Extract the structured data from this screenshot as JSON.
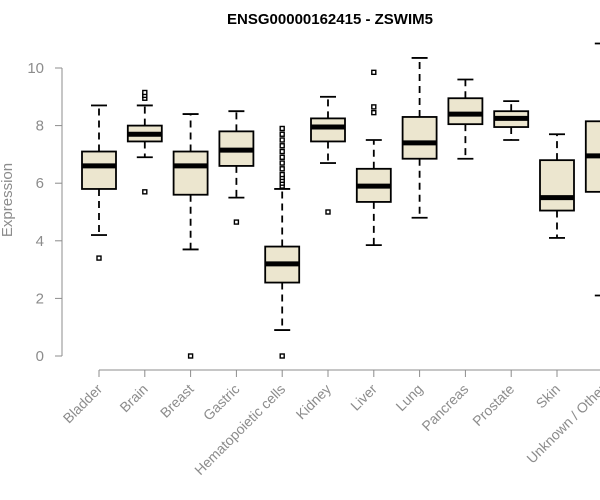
{
  "chart_data": {
    "type": "boxplot",
    "title": "ENSG00000162415 - ZSWIM5",
    "ylabel": "Expression",
    "xlabel": "",
    "ylim": [
      0,
      10
    ],
    "yticks": [
      0,
      2,
      4,
      6,
      8,
      10
    ],
    "grid": false,
    "colors": {
      "box_fill": "#ece6cf",
      "stroke": "#000000",
      "axis": "#8c8c8c"
    },
    "categories": [
      "Bladder",
      "Brain",
      "Breast",
      "Gastric",
      "Hematopoietic cells",
      "Kidney",
      "Liver",
      "Lung",
      "Pancreas",
      "Prostate",
      "Skin",
      "Unknown / Other"
    ],
    "boxes": [
      {
        "category": "Bladder",
        "whisker_low": 4.2,
        "q1": 5.8,
        "median": 6.6,
        "q3": 7.1,
        "whisker_high": 8.7,
        "outliers": [
          3.4
        ]
      },
      {
        "category": "Brain",
        "whisker_low": 6.9,
        "q1": 7.45,
        "median": 7.7,
        "q3": 8.0,
        "whisker_high": 8.7,
        "outliers": [
          5.7,
          8.95,
          9.05,
          9.15
        ]
      },
      {
        "category": "Breast",
        "whisker_low": 3.7,
        "q1": 5.6,
        "median": 6.6,
        "q3": 7.1,
        "whisker_high": 8.4,
        "outliers": [
          0.0
        ]
      },
      {
        "category": "Gastric",
        "whisker_low": 5.5,
        "q1": 6.6,
        "median": 7.15,
        "q3": 7.8,
        "whisker_high": 8.5,
        "outliers": [
          4.65
        ]
      },
      {
        "category": "Hematopoietic cells",
        "whisker_low": 0.9,
        "q1": 2.55,
        "median": 3.2,
        "q3": 3.8,
        "whisker_high": 5.8,
        "outliers": [
          0.0,
          5.9,
          6.0,
          6.1,
          6.2,
          6.3,
          6.5,
          6.7,
          6.9,
          7.1,
          7.3,
          7.5,
          7.7,
          7.9
        ]
      },
      {
        "category": "Kidney",
        "whisker_low": 6.7,
        "q1": 7.45,
        "median": 7.95,
        "q3": 8.25,
        "whisker_high": 9.0,
        "outliers": [
          5.0
        ]
      },
      {
        "category": "Liver",
        "whisker_low": 3.85,
        "q1": 5.35,
        "median": 5.9,
        "q3": 6.5,
        "whisker_high": 7.5,
        "outliers": [
          8.45,
          8.65,
          9.85
        ]
      },
      {
        "category": "Lung",
        "whisker_low": 4.8,
        "q1": 6.85,
        "median": 7.4,
        "q3": 8.3,
        "whisker_high": 10.35,
        "outliers": []
      },
      {
        "category": "Pancreas",
        "whisker_low": 6.85,
        "q1": 8.05,
        "median": 8.4,
        "q3": 8.95,
        "whisker_high": 9.6,
        "outliers": []
      },
      {
        "category": "Prostate",
        "whisker_low": 7.5,
        "q1": 7.95,
        "median": 8.25,
        "q3": 8.5,
        "whisker_high": 8.85,
        "outliers": []
      },
      {
        "category": "Skin",
        "whisker_low": 4.1,
        "q1": 5.05,
        "median": 5.5,
        "q3": 6.8,
        "whisker_high": 7.7,
        "outliers": []
      },
      {
        "category": "Unknown / Other",
        "whisker_low": 2.1,
        "q1": 5.7,
        "median": 6.95,
        "q3": 8.15,
        "whisker_high": 10.85,
        "outliers": [
          1.8
        ]
      }
    ]
  }
}
